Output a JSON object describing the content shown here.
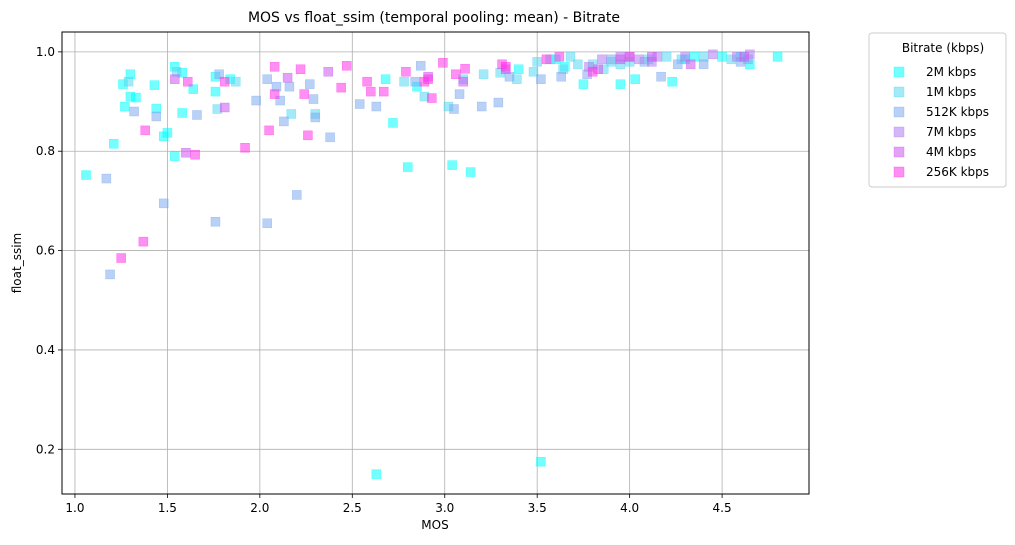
{
  "chart_data": {
    "type": "scatter",
    "title": "MOS vs float_ssim (temporal pooling: mean) - Bitrate",
    "xlabel": "MOS",
    "ylabel": "float_ssim",
    "xlim": [
      0.93,
      4.97
    ],
    "ylim": [
      0.11,
      1.04
    ],
    "xticks": [
      1.0,
      1.5,
      2.0,
      2.5,
      3.0,
      3.5,
      4.0,
      4.5
    ],
    "xtick_labels": [
      "1.0",
      "1.5",
      "2.0",
      "2.5",
      "3.0",
      "3.5",
      "4.0",
      "4.5"
    ],
    "yticks": [
      0.2,
      0.4,
      0.6,
      0.8,
      1.0
    ],
    "ytick_labels": [
      "0.2",
      "0.4",
      "0.6",
      "0.8",
      "1.0"
    ],
    "grid": true,
    "legend": {
      "title": "Bitrate (kbps)",
      "placement": "outside-top-right"
    },
    "series": [
      {
        "name": "2M kbps",
        "color": "#00ffff",
        "points": [
          [
            1.06,
            0.752
          ],
          [
            1.21,
            0.815
          ],
          [
            1.26,
            0.935
          ],
          [
            1.27,
            0.89
          ],
          [
            1.3,
            0.955
          ],
          [
            1.3,
            0.91
          ],
          [
            1.33,
            0.908
          ],
          [
            1.43,
            0.933
          ],
          [
            1.44,
            0.886
          ],
          [
            1.48,
            0.83
          ],
          [
            1.5,
            0.837
          ],
          [
            1.54,
            0.97
          ],
          [
            1.54,
            0.79
          ],
          [
            1.58,
            0.958
          ],
          [
            1.58,
            0.877
          ],
          [
            1.64,
            0.925
          ],
          [
            1.76,
            0.95
          ],
          [
            1.76,
            0.92
          ],
          [
            1.84,
            0.945
          ],
          [
            2.63,
            0.15
          ],
          [
            2.68,
            0.945
          ],
          [
            2.72,
            0.857
          ],
          [
            2.8,
            0.768
          ],
          [
            2.85,
            0.93
          ],
          [
            3.04,
            0.772
          ],
          [
            3.14,
            0.758
          ],
          [
            3.4,
            0.965
          ],
          [
            3.52,
            0.175
          ],
          [
            3.6,
            0.985
          ],
          [
            3.65,
            0.97
          ],
          [
            3.75,
            0.935
          ],
          [
            3.95,
            0.935
          ],
          [
            4.03,
            0.945
          ],
          [
            4.23,
            0.94
          ],
          [
            4.3,
            0.985
          ],
          [
            4.35,
            0.99
          ],
          [
            4.5,
            0.99
          ],
          [
            4.6,
            0.99
          ],
          [
            4.65,
            0.975
          ],
          [
            4.8,
            0.99
          ]
        ]
      },
      {
        "name": "1M kbps",
        "color": "#55d8f0",
        "points": [
          [
            1.29,
            0.94
          ],
          [
            1.55,
            0.96
          ],
          [
            1.77,
            0.885
          ],
          [
            1.87,
            0.94
          ],
          [
            2.17,
            0.875
          ],
          [
            2.3,
            0.875
          ],
          [
            2.78,
            0.94
          ],
          [
            2.89,
            0.91
          ],
          [
            3.02,
            0.89
          ],
          [
            3.1,
            0.945
          ],
          [
            3.21,
            0.955
          ],
          [
            3.3,
            0.958
          ],
          [
            3.39,
            0.945
          ],
          [
            3.48,
            0.96
          ],
          [
            3.5,
            0.98
          ],
          [
            3.57,
            0.985
          ],
          [
            3.64,
            0.965
          ],
          [
            3.68,
            0.99
          ],
          [
            3.72,
            0.975
          ],
          [
            3.8,
            0.975
          ],
          [
            3.86,
            0.965
          ],
          [
            3.9,
            0.98
          ],
          [
            3.95,
            0.975
          ],
          [
            4.0,
            0.98
          ],
          [
            4.1,
            0.985
          ],
          [
            4.2,
            0.99
          ],
          [
            4.28,
            0.985
          ],
          [
            4.4,
            0.99
          ],
          [
            4.55,
            0.985
          ]
        ]
      },
      {
        "name": "512K kbps",
        "color": "#7fa9f0",
        "points": [
          [
            1.17,
            0.745
          ],
          [
            1.19,
            0.552
          ],
          [
            1.32,
            0.88
          ],
          [
            1.44,
            0.87
          ],
          [
            1.48,
            0.695
          ],
          [
            1.66,
            0.873
          ],
          [
            1.76,
            0.658
          ],
          [
            1.78,
            0.955
          ],
          [
            1.98,
            0.902
          ],
          [
            2.04,
            0.945
          ],
          [
            2.04,
            0.655
          ],
          [
            2.09,
            0.93
          ],
          [
            2.11,
            0.902
          ],
          [
            2.13,
            0.86
          ],
          [
            2.16,
            0.93
          ],
          [
            2.2,
            0.712
          ],
          [
            2.27,
            0.935
          ],
          [
            2.29,
            0.905
          ],
          [
            2.3,
            0.868
          ],
          [
            2.38,
            0.828
          ],
          [
            2.54,
            0.895
          ],
          [
            2.63,
            0.89
          ],
          [
            2.84,
            0.94
          ],
          [
            2.87,
            0.972
          ],
          [
            3.05,
            0.885
          ],
          [
            3.08,
            0.915
          ],
          [
            3.2,
            0.89
          ],
          [
            3.29,
            0.898
          ],
          [
            3.35,
            0.95
          ],
          [
            3.52,
            0.945
          ],
          [
            3.63,
            0.95
          ],
          [
            3.77,
            0.955
          ],
          [
            3.9,
            0.985
          ],
          [
            4.0,
            0.99
          ],
          [
            4.08,
            0.98
          ],
          [
            4.17,
            0.95
          ],
          [
            4.26,
            0.975
          ],
          [
            4.4,
            0.975
          ],
          [
            4.6,
            0.98
          ],
          [
            4.64,
            0.985
          ]
        ]
      },
      {
        "name": "7M kbps",
        "color": "#b07cf0",
        "points": [
          [
            3.78,
            0.97
          ],
          [
            3.85,
            0.985
          ],
          [
            4.05,
            0.985
          ],
          [
            4.15,
            0.99
          ],
          [
            4.3,
            0.99
          ],
          [
            4.45,
            0.995
          ],
          [
            4.58,
            0.99
          ],
          [
            4.65,
            0.995
          ],
          [
            4.12,
            0.98
          ],
          [
            3.95,
            0.99
          ]
        ]
      },
      {
        "name": "4M kbps",
        "color": "#cc55f0",
        "points": [
          [
            1.54,
            0.945
          ],
          [
            1.6,
            0.797
          ],
          [
            1.81,
            0.888
          ],
          [
            2.15,
            0.948
          ],
          [
            2.37,
            0.96
          ],
          [
            2.91,
            0.95
          ],
          [
            3.1,
            0.94
          ],
          [
            3.33,
            0.965
          ],
          [
            3.83,
            0.965
          ],
          [
            3.95,
            0.985
          ],
          [
            4.12,
            0.99
          ],
          [
            4.33,
            0.975
          ],
          [
            4.62,
            0.99
          ]
        ]
      },
      {
        "name": "256K kbps",
        "color": "#ff33e8",
        "points": [
          [
            1.25,
            0.585
          ],
          [
            1.37,
            0.618
          ],
          [
            1.38,
            0.842
          ],
          [
            1.61,
            0.94
          ],
          [
            1.65,
            0.793
          ],
          [
            1.81,
            0.94
          ],
          [
            1.92,
            0.807
          ],
          [
            2.05,
            0.842
          ],
          [
            2.08,
            0.915
          ],
          [
            2.08,
            0.97
          ],
          [
            2.22,
            0.965
          ],
          [
            2.24,
            0.915
          ],
          [
            2.26,
            0.832
          ],
          [
            2.44,
            0.928
          ],
          [
            2.47,
            0.972
          ],
          [
            2.58,
            0.94
          ],
          [
            2.6,
            0.92
          ],
          [
            2.67,
            0.92
          ],
          [
            2.79,
            0.96
          ],
          [
            2.89,
            0.94
          ],
          [
            2.91,
            0.945
          ],
          [
            2.93,
            0.907
          ],
          [
            2.99,
            0.978
          ],
          [
            3.06,
            0.955
          ],
          [
            3.11,
            0.966
          ],
          [
            3.31,
            0.975
          ],
          [
            3.33,
            0.97
          ],
          [
            3.55,
            0.985
          ],
          [
            3.62,
            0.99
          ],
          [
            3.8,
            0.96
          ],
          [
            4.0,
            0.99
          ]
        ]
      }
    ]
  }
}
